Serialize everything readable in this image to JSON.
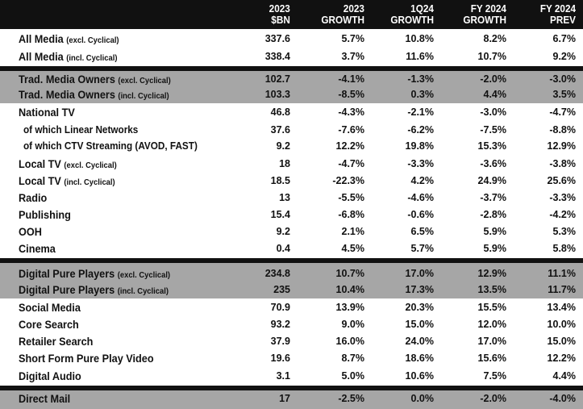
{
  "header": {
    "col1": [
      "2023",
      "$BN"
    ],
    "col2": [
      "2023",
      "GROWTH"
    ],
    "col3": [
      "1Q24",
      "GROWTH"
    ],
    "col4": [
      "FY 2024",
      "GROWTH"
    ],
    "col5": [
      "FY 2024",
      "PREV"
    ]
  },
  "rows": [
    {
      "label": "All Media",
      "qualifier": "(excl. Cyclical)",
      "values": [
        "337.6",
        "5.7%",
        "10.8%",
        "8.2%",
        "6.7%"
      ]
    },
    {
      "label": "All Media",
      "qualifier": "(incl. Cyclical)",
      "values": [
        "338.4",
        "3.7%",
        "11.6%",
        "10.7%",
        "9.2%"
      ]
    },
    {
      "label": "Trad. Media Owners",
      "qualifier": "(excl. Cyclical)",
      "values": [
        "102.7",
        "-4.1%",
        "-1.3%",
        "-2.0%",
        "-3.0%"
      ]
    },
    {
      "label": "Trad. Media Owners",
      "qualifier": "(incl. Cyclical)",
      "values": [
        "103.3",
        "-8.5%",
        "0.3%",
        "4.4%",
        "3.5%"
      ]
    },
    {
      "label": "National TV",
      "qualifier": "",
      "values": [
        "46.8",
        "-4.3%",
        "-2.1%",
        "-3.0%",
        "-4.7%"
      ]
    },
    {
      "label": "of which Linear Networks",
      "qualifier": "",
      "values": [
        "37.6",
        "-7.6%",
        "-6.2%",
        "-7.5%",
        "-8.8%"
      ]
    },
    {
      "label": "of which CTV Streaming (AVOD, FAST)",
      "qualifier": "",
      "values": [
        "9.2",
        "12.2%",
        "19.8%",
        "15.3%",
        "12.9%"
      ]
    },
    {
      "label": "Local TV",
      "qualifier": "(excl. Cyclical)",
      "values": [
        "18",
        "-4.7%",
        "-3.3%",
        "-3.6%",
        "-3.8%"
      ]
    },
    {
      "label": "Local TV",
      "qualifier": "(incl. Cyclical)",
      "values": [
        "18.5",
        "-22.3%",
        "4.2%",
        "24.9%",
        "25.6%"
      ]
    },
    {
      "label": "Radio",
      "qualifier": "",
      "values": [
        "13",
        "-5.5%",
        "-4.6%",
        "-3.7%",
        "-3.3%"
      ]
    },
    {
      "label": "Publishing",
      "qualifier": "",
      "values": [
        "15.4",
        "-6.8%",
        "-0.6%",
        "-2.8%",
        "-4.2%"
      ]
    },
    {
      "label": "OOH",
      "qualifier": "",
      "values": [
        "9.2",
        "2.1%",
        "6.5%",
        "5.9%",
        "5.3%"
      ]
    },
    {
      "label": "Cinema",
      "qualifier": "",
      "values": [
        "0.4",
        "4.5%",
        "5.7%",
        "5.9%",
        "5.8%"
      ]
    },
    {
      "label": "Digital Pure Players",
      "qualifier": "(excl. Cyclical)",
      "values": [
        "234.8",
        "10.7%",
        "17.0%",
        "12.9%",
        "11.1%"
      ]
    },
    {
      "label": "Digital Pure Players",
      "qualifier": "(incl. Cyclical)",
      "values": [
        "235",
        "10.4%",
        "17.3%",
        "13.5%",
        "11.7%"
      ]
    },
    {
      "label": "Social Media",
      "qualifier": "",
      "values": [
        "70.9",
        "13.9%",
        "20.3%",
        "15.5%",
        "13.4%"
      ]
    },
    {
      "label": "Core Search",
      "qualifier": "",
      "values": [
        "93.2",
        "9.0%",
        "15.0%",
        "12.0%",
        "10.0%"
      ]
    },
    {
      "label": "Retailer Search",
      "qualifier": "",
      "values": [
        "37.9",
        "16.0%",
        "24.0%",
        "17.0%",
        "15.0%"
      ]
    },
    {
      "label": "Short Form Pure Play Video",
      "qualifier": "",
      "values": [
        "19.6",
        "8.7%",
        "18.6%",
        "15.6%",
        "12.2%"
      ]
    },
    {
      "label": "Digital Audio",
      "qualifier": "",
      "values": [
        "3.1",
        "5.0%",
        "10.6%",
        "7.5%",
        "4.4%"
      ]
    },
    {
      "label": "Direct Mail",
      "qualifier": "",
      "values": [
        "17",
        "-2.5%",
        "0.0%",
        "-2.0%",
        "-4.0%"
      ]
    }
  ],
  "colors": {
    "header_bg": "#111111",
    "shaded_row": "#a6a6a6",
    "separator": "#111111"
  }
}
